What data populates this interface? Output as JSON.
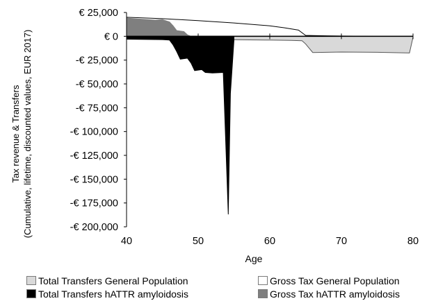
{
  "chart_data": {
    "type": "area",
    "xlabel": "Age",
    "ylabel": [
      "Tax revenue & Transfers",
      "(Cumulative, lifetime, discounted values, EUR 2017)"
    ],
    "xlim": [
      40,
      80
    ],
    "ylim": [
      -200000,
      25000
    ],
    "x_ticks": [
      40,
      50,
      60,
      70,
      80
    ],
    "x_tick_labels": [
      "40",
      "50",
      "60",
      "70",
      "80"
    ],
    "y_ticks": [
      25000,
      0,
      -25000,
      -50000,
      -75000,
      -100000,
      -125000,
      -150000,
      -175000,
      -200000
    ],
    "y_tick_labels": [
      "€ 25,000",
      "€ 0",
      "-€ 25,000",
      "-€ 50,000",
      "-€ 75,000",
      "-€ 100,000",
      "-€ 125,000",
      "-€ 150,000",
      "-€ 175,000",
      "-€ 200,000"
    ],
    "grid": false,
    "legend_position": "bottom",
    "series": [
      {
        "name": "Gross Tax General Population",
        "color": "#ffffff",
        "stroke": "#000000",
        "points": [
          [
            40,
            20000
          ],
          [
            45,
            18500
          ],
          [
            50,
            16500
          ],
          [
            55,
            14000
          ],
          [
            60,
            11000
          ],
          [
            62,
            9000
          ],
          [
            64,
            6500
          ],
          [
            65,
            1000
          ],
          [
            66,
            800
          ],
          [
            68,
            500
          ],
          [
            70,
            300
          ],
          [
            75,
            100
          ],
          [
            80,
            0
          ]
        ]
      },
      {
        "name": "Total Transfers General Population",
        "color": "#d9d9d9",
        "stroke": "#555555",
        "points": [
          [
            40,
            -2500
          ],
          [
            45,
            -2800
          ],
          [
            50,
            -3200
          ],
          [
            55,
            -3600
          ],
          [
            60,
            -4000
          ],
          [
            63,
            -4300
          ],
          [
            64.5,
            -4600
          ],
          [
            65,
            -8000
          ],
          [
            66,
            -17000
          ],
          [
            70,
            -16500
          ],
          [
            75,
            -16800
          ],
          [
            79.5,
            -17500
          ],
          [
            80,
            -1000
          ]
        ]
      },
      {
        "name": "Gross Tax hATTR amyloidosis",
        "color": "#7f7f7f",
        "stroke": "#7f7f7f",
        "points": [
          [
            40,
            19000
          ],
          [
            42,
            18000
          ],
          [
            44,
            17000
          ],
          [
            45,
            17500
          ],
          [
            46,
            15000
          ],
          [
            46.5,
            11000
          ],
          [
            47,
            6000
          ],
          [
            48,
            5000
          ],
          [
            48.5,
            1500
          ],
          [
            49,
            0
          ],
          [
            55,
            0
          ]
        ]
      },
      {
        "name": "Total Transfers hATTR amyloidosis",
        "color": "#000000",
        "stroke": "#000000",
        "points": [
          [
            40,
            -3000
          ],
          [
            42,
            -3200
          ],
          [
            45,
            -3500
          ],
          [
            46,
            -4000
          ],
          [
            46.5,
            -9000
          ],
          [
            47,
            -16000
          ],
          [
            47.5,
            -24000
          ],
          [
            48.5,
            -23000
          ],
          [
            49,
            -28000
          ],
          [
            49.5,
            -36000
          ],
          [
            50.5,
            -35000
          ],
          [
            51,
            -38000
          ],
          [
            52,
            -38500
          ],
          [
            53.5,
            -38000
          ],
          [
            54.2,
            -187000
          ],
          [
            54.5,
            -60000
          ],
          [
            55,
            -4000
          ]
        ]
      }
    ]
  },
  "legend": {
    "items": [
      {
        "label": "Total Transfers General Population",
        "color": "#d9d9d9"
      },
      {
        "label": "Gross Tax General Population",
        "color": "#ffffff"
      },
      {
        "label": "Total Transfers hATTR amyloidosis",
        "color": "#000000"
      },
      {
        "label": "Gross Tax hATTR amyloidosis",
        "color": "#7f7f7f"
      }
    ]
  }
}
